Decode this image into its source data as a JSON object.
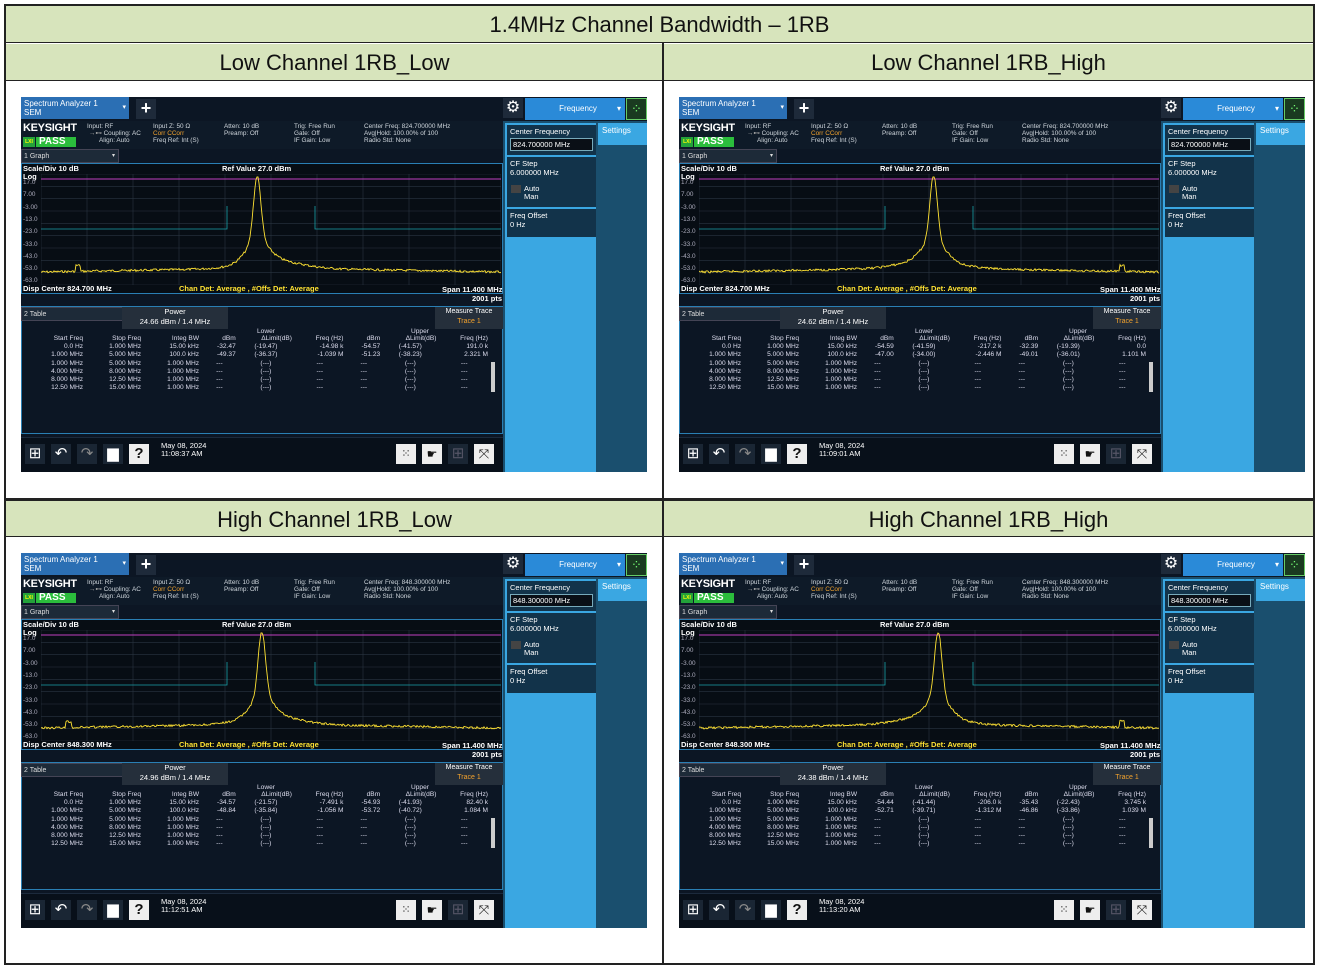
{
  "document": {
    "title": "1.4MHz Channel Bandwidth – 1RB"
  },
  "panels": [
    {
      "heading": "Low Channel 1RB_Low",
      "screen": {
        "app_tab": "Spectrum Analyzer 1",
        "app_mode": "SEM",
        "freq_menu": "Frequency",
        "brand": "KEYSIGHT",
        "info_col1": [
          "Input: RF",
          "Coupling: AC",
          "Align: Auto"
        ],
        "info_col2": [
          "Input Z: 50 Ω",
          "Corr CCorr",
          "Freq Ref: Int (S)"
        ],
        "info_col3": [
          "Atten: 10 dB",
          "Preamp: Off"
        ],
        "info_col4": [
          "Trig: Free Run",
          "Gate: Off",
          "IF Gain: Low"
        ],
        "info_col5": [
          "Center Freq: 824.700000 MHz",
          "Avg|Hold: 100.00% of 100",
          "Radio Std: None"
        ],
        "status": "PASS",
        "graph_select": "1 Graph",
        "scale_div": "Scale/Div 10 dB",
        "scale_type": "Log",
        "ref_value": "Ref Value 27.0 dBm",
        "y_ticks": [
          "17.0",
          "7.00",
          "-3.00",
          "-13.0",
          "-23.0",
          "-33.0",
          "-43.0",
          "-53.0",
          "-63.0"
        ],
        "disp_center": "Disp Center 824.700 MHz",
        "chan_det": "Chan Det: Average , #Offs Det: Average",
        "span": "Span 11.400 MHz",
        "points": "2001 pts",
        "table_select": "2 Table",
        "power_label": "Power",
        "power_value": "24.66 dBm / 1.4 MHz",
        "measure_trace_label": "Measure Trace",
        "measure_trace_value": "Trace 1",
        "lower_label": "Lower",
        "upper_label": "Upper",
        "table_headers": [
          "Start Freq",
          "Stop Freq",
          "Integ BW",
          "dBm",
          "ΔLimit(dB)",
          "Freq (Hz)",
          "dBm",
          "ΔLimit(dB)",
          "Freq (Hz)"
        ],
        "table_rows": [
          [
            "0.0 Hz",
            "1.000 MHz",
            "15.00 kHz",
            "-32.47",
            "(-19.47)",
            "-14.98 k",
            "-54.57",
            "(-41.57)",
            "191.0 k"
          ],
          [
            "1.000 MHz",
            "5.000 MHz",
            "100.0 kHz",
            "-49.37",
            "(-36.37)",
            "-1.039 M",
            "-51.23",
            "(-38.23)",
            "2.321 M"
          ],
          [
            "1.000 MHz",
            "5.000 MHz",
            "1.000 MHz",
            "---",
            "(---)",
            "---",
            "---",
            "(---)",
            "---"
          ],
          [
            "4.000 MHz",
            "8.000 MHz",
            "1.000 MHz",
            "---",
            "(---)",
            "---",
            "---",
            "(---)",
            "---"
          ],
          [
            "8.000 MHz",
            "12.50 MHz",
            "1.000 MHz",
            "---",
            "(---)",
            "---",
            "---",
            "(---)",
            "---"
          ],
          [
            "12.50 MHz",
            "15.00 MHz",
            "1.000 MHz",
            "---",
            "(---)",
            "---",
            "---",
            "(---)",
            "---"
          ]
        ],
        "date": "May 08, 2024",
        "time": "11:08:37 AM",
        "center_freq_label": "Center Frequency",
        "center_freq_value": "824.700000 MHz",
        "settings_label": "Settings",
        "cf_step_label": "CF Step",
        "cf_step_value": "6.000000 MHz",
        "auto_label": "Auto",
        "man_label": "Man",
        "freq_offset_label": "Freq Offset",
        "freq_offset_value": "0 Hz"
      }
    },
    {
      "heading": "Low Channel 1RB_High",
      "screen": {
        "app_tab": "Spectrum Analyzer 1",
        "app_mode": "SEM",
        "freq_menu": "Frequency",
        "brand": "KEYSIGHT",
        "info_col1": [
          "Input: RF",
          "Coupling: AC",
          "Align: Auto"
        ],
        "info_col2": [
          "Input Z: 50 Ω",
          "Corr CCorr",
          "Freq Ref: Int (S)"
        ],
        "info_col3": [
          "Atten: 10 dB",
          "Preamp: Off"
        ],
        "info_col4": [
          "Trig: Free Run",
          "Gate: Off",
          "IF Gain: Low"
        ],
        "info_col5": [
          "Center Freq: 824.700000 MHz",
          "Avg|Hold: 100.00% of 100",
          "Radio Std: None"
        ],
        "status": "PASS",
        "graph_select": "1 Graph",
        "scale_div": "Scale/Div 10 dB",
        "scale_type": "Log",
        "ref_value": "Ref Value 27.0 dBm",
        "y_ticks": [
          "17.0",
          "7.00",
          "-3.00",
          "-13.0",
          "-23.0",
          "-33.0",
          "-43.0",
          "-53.0",
          "-63.0"
        ],
        "disp_center": "Disp Center 824.700 MHz",
        "chan_det": "Chan Det: Average , #Offs Det: Average",
        "span": "Span 11.400 MHz",
        "points": "2001 pts",
        "table_select": "2 Table",
        "power_label": "Power",
        "power_value": "24.62 dBm / 1.4 MHz",
        "measure_trace_label": "Measure Trace",
        "measure_trace_value": "Trace 1",
        "lower_label": "Lower",
        "upper_label": "Upper",
        "table_headers": [
          "Start Freq",
          "Stop Freq",
          "Integ BW",
          "dBm",
          "ΔLimit(dB)",
          "Freq (Hz)",
          "dBm",
          "ΔLimit(dB)",
          "Freq (Hz)"
        ],
        "table_rows": [
          [
            "0.0 Hz",
            "1.000 MHz",
            "15.00 kHz",
            "-54.59",
            "(-41.59)",
            "-217.2 k",
            "-32.39",
            "(-19.39)",
            "0.0"
          ],
          [
            "1.000 MHz",
            "5.000 MHz",
            "100.0 kHz",
            "-47.00",
            "(-34.00)",
            "-2.446 M",
            "-49.01",
            "(-36.01)",
            "1.101 M"
          ],
          [
            "1.000 MHz",
            "5.000 MHz",
            "1.000 MHz",
            "---",
            "(---)",
            "---",
            "---",
            "(---)",
            "---"
          ],
          [
            "4.000 MHz",
            "8.000 MHz",
            "1.000 MHz",
            "---",
            "(---)",
            "---",
            "---",
            "(---)",
            "---"
          ],
          [
            "8.000 MHz",
            "12.50 MHz",
            "1.000 MHz",
            "---",
            "(---)",
            "---",
            "---",
            "(---)",
            "---"
          ],
          [
            "12.50 MHz",
            "15.00 MHz",
            "1.000 MHz",
            "---",
            "(---)",
            "---",
            "---",
            "(---)",
            "---"
          ]
        ],
        "date": "May 08, 2024",
        "time": "11:09:01 AM",
        "center_freq_label": "Center Frequency",
        "center_freq_value": "824.700000 MHz",
        "settings_label": "Settings",
        "cf_step_label": "CF Step",
        "cf_step_value": "6.000000 MHz",
        "auto_label": "Auto",
        "man_label": "Man",
        "freq_offset_label": "Freq Offset",
        "freq_offset_value": "0 Hz"
      }
    },
    {
      "heading": "High Channel 1RB_Low",
      "screen": {
        "app_tab": "Spectrum Analyzer 1",
        "app_mode": "SEM",
        "freq_menu": "Frequency",
        "brand": "KEYSIGHT",
        "info_col1": [
          "Input: RF",
          "Coupling: AC",
          "Align: Auto"
        ],
        "info_col2": [
          "Input Z: 50 Ω",
          "Corr CCorr",
          "Freq Ref: Int (S)"
        ],
        "info_col3": [
          "Atten: 10 dB",
          "Preamp: Off"
        ],
        "info_col4": [
          "Trig: Free Run",
          "Gate: Off",
          "IF Gain: Low"
        ],
        "info_col5": [
          "Center Freq: 848.300000 MHz",
          "Avg|Hold: 100.00% of 100",
          "Radio Std: None"
        ],
        "status": "PASS",
        "graph_select": "1 Graph",
        "scale_div": "Scale/Div 10 dB",
        "scale_type": "Log",
        "ref_value": "Ref Value 27.0 dBm",
        "y_ticks": [
          "17.0",
          "7.00",
          "-3.00",
          "-13.0",
          "-23.0",
          "-33.0",
          "-43.0",
          "-53.0",
          "-63.0"
        ],
        "disp_center": "Disp Center 848.300 MHz",
        "chan_det": "Chan Det: Average , #Offs Det: Average",
        "span": "Span 11.400 MHz",
        "points": "2001 pts",
        "table_select": "2 Table",
        "power_label": "Power",
        "power_value": "24.96 dBm / 1.4 MHz",
        "measure_trace_label": "Measure Trace",
        "measure_trace_value": "Trace 1",
        "lower_label": "Lower",
        "upper_label": "Upper",
        "table_headers": [
          "Start Freq",
          "Stop Freq",
          "Integ BW",
          "dBm",
          "ΔLimit(dB)",
          "Freq (Hz)",
          "dBm",
          "ΔLimit(dB)",
          "Freq (Hz)"
        ],
        "table_rows": [
          [
            "0.0 Hz",
            "1.000 MHz",
            "15.00 kHz",
            "-34.57",
            "(-21.57)",
            "-7.491 k",
            "-54.93",
            "(-41.93)",
            "82.40 k"
          ],
          [
            "1.000 MHz",
            "5.000 MHz",
            "100.0 kHz",
            "-48.84",
            "(-35.84)",
            "-1.056 M",
            "-53.72",
            "(-40.72)",
            "1.084 M"
          ],
          [
            "1.000 MHz",
            "5.000 MHz",
            "1.000 MHz",
            "---",
            "(---)",
            "---",
            "---",
            "(---)",
            "---"
          ],
          [
            "4.000 MHz",
            "8.000 MHz",
            "1.000 MHz",
            "---",
            "(---)",
            "---",
            "---",
            "(---)",
            "---"
          ],
          [
            "8.000 MHz",
            "12.50 MHz",
            "1.000 MHz",
            "---",
            "(---)",
            "---",
            "---",
            "(---)",
            "---"
          ],
          [
            "12.50 MHz",
            "15.00 MHz",
            "1.000 MHz",
            "---",
            "(---)",
            "---",
            "---",
            "(---)",
            "---"
          ]
        ],
        "date": "May 08, 2024",
        "time": "11:12:51 AM",
        "center_freq_label": "Center Frequency",
        "center_freq_value": "848.300000 MHz",
        "settings_label": "Settings",
        "cf_step_label": "CF Step",
        "cf_step_value": "6.000000 MHz",
        "auto_label": "Auto",
        "man_label": "Man",
        "freq_offset_label": "Freq Offset",
        "freq_offset_value": "0 Hz"
      }
    },
    {
      "heading": "High Channel 1RB_High",
      "screen": {
        "app_tab": "Spectrum Analyzer 1",
        "app_mode": "SEM",
        "freq_menu": "Frequency",
        "brand": "KEYSIGHT",
        "info_col1": [
          "Input: RF",
          "Coupling: AC",
          "Align: Auto"
        ],
        "info_col2": [
          "Input Z: 50 Ω",
          "Corr CCorr",
          "Freq Ref: Int (S)"
        ],
        "info_col3": [
          "Atten: 10 dB",
          "Preamp: Off"
        ],
        "info_col4": [
          "Trig: Free Run",
          "Gate: Off",
          "IF Gain: Low"
        ],
        "info_col5": [
          "Center Freq: 848.300000 MHz",
          "Avg|Hold: 100.00% of 100",
          "Radio Std: None"
        ],
        "status": "PASS",
        "graph_select": "1 Graph",
        "scale_div": "Scale/Div 10 dB",
        "scale_type": "Log",
        "ref_value": "Ref Value 27.0 dBm",
        "y_ticks": [
          "17.0",
          "7.00",
          "-3.00",
          "-13.0",
          "-23.0",
          "-33.0",
          "-43.0",
          "-53.0",
          "-63.0"
        ],
        "disp_center": "Disp Center 848.300 MHz",
        "chan_det": "Chan Det: Average , #Offs Det: Average",
        "span": "Span 11.400 MHz",
        "points": "2001 pts",
        "table_select": "2 Table",
        "power_label": "Power",
        "power_value": "24.38 dBm / 1.4 MHz",
        "measure_trace_label": "Measure Trace",
        "measure_trace_value": "Trace 1",
        "lower_label": "Lower",
        "upper_label": "Upper",
        "table_headers": [
          "Start Freq",
          "Stop Freq",
          "Integ BW",
          "dBm",
          "ΔLimit(dB)",
          "Freq (Hz)",
          "dBm",
          "ΔLimit(dB)",
          "Freq (Hz)"
        ],
        "table_rows": [
          [
            "0.0 Hz",
            "1.000 MHz",
            "15.00 kHz",
            "-54.44",
            "(-41.44)",
            "-206.0 k",
            "-35.43",
            "(-22.43)",
            "3.745 k"
          ],
          [
            "1.000 MHz",
            "5.000 MHz",
            "100.0 kHz",
            "-52.71",
            "(-39.71)",
            "-1.312 M",
            "-46.86",
            "(-33.86)",
            "1.039 M"
          ],
          [
            "1.000 MHz",
            "5.000 MHz",
            "1.000 MHz",
            "---",
            "(---)",
            "---",
            "---",
            "(---)",
            "---"
          ],
          [
            "4.000 MHz",
            "8.000 MHz",
            "1.000 MHz",
            "---",
            "(---)",
            "---",
            "---",
            "(---)",
            "---"
          ],
          [
            "8.000 MHz",
            "12.50 MHz",
            "1.000 MHz",
            "---",
            "(---)",
            "---",
            "---",
            "(---)",
            "---"
          ],
          [
            "12.50 MHz",
            "15.00 MHz",
            "1.000 MHz",
            "---",
            "(---)",
            "---",
            "---",
            "(---)",
            "---"
          ]
        ],
        "date": "May 08, 2024",
        "time": "11:13:20 AM",
        "center_freq_label": "Center Frequency",
        "center_freq_value": "848.300000 MHz",
        "settings_label": "Settings",
        "cf_step_label": "CF Step",
        "cf_step_value": "6.000000 MHz",
        "auto_label": "Auto",
        "man_label": "Man",
        "freq_offset_label": "Freq Offset",
        "freq_offset_value": "0 Hz"
      }
    }
  ],
  "colors": {
    "header_bg": "#d7e4bc",
    "trace": "#ffe233",
    "limit_line": "#c040c0",
    "limit_cyan": "#1aa0a8",
    "pass": "#2bbd3c",
    "softkey_blue": "#3aa7e2"
  }
}
